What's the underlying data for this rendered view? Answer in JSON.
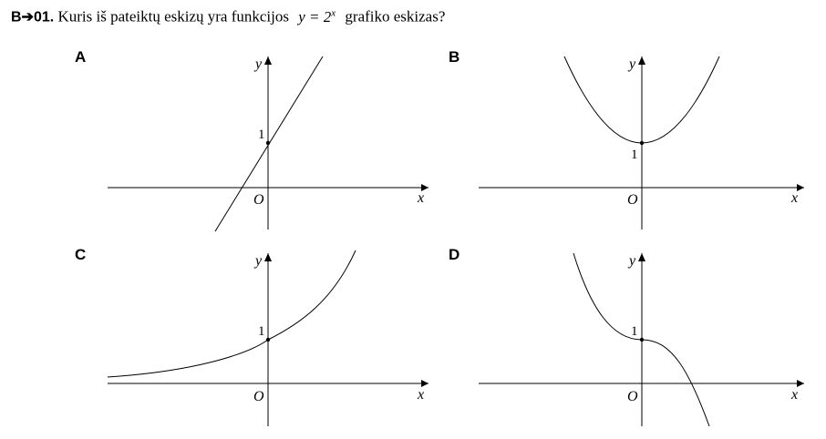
{
  "question": {
    "number": "B➔01.",
    "text": "Kuris iš pateiktų eskizų yra funkcijos",
    "formula_lhs": "y = 2",
    "formula_exp": "x",
    "text_after": "grafiko eskizas?"
  },
  "options": [
    {
      "id": "A",
      "label": "A",
      "graph": "line",
      "axis_x": "x",
      "axis_y": "y",
      "origin": "O",
      "tick": "1"
    },
    {
      "id": "B",
      "label": "B",
      "graph": "parabola",
      "axis_x": "x",
      "axis_y": "y",
      "origin": "O",
      "tick": "1"
    },
    {
      "id": "C",
      "label": "C",
      "graph": "exponential",
      "axis_x": "x",
      "axis_y": "y",
      "origin": "O",
      "tick": "1"
    },
    {
      "id": "D",
      "label": "D",
      "graph": "cubic",
      "axis_x": "x",
      "axis_y": "y",
      "origin": "O",
      "tick": "1"
    }
  ]
}
